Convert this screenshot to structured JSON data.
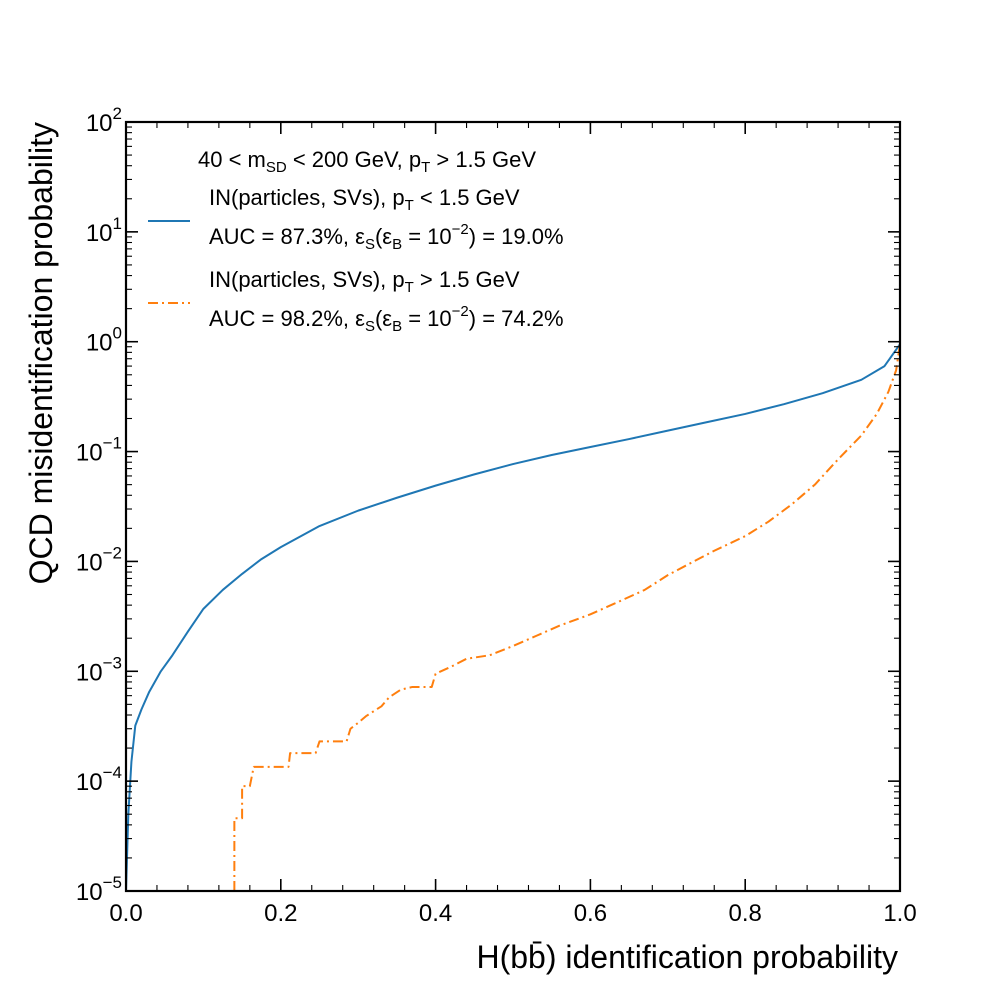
{
  "chart_data": {
    "type": "line",
    "xlabel": "H(bb̄) identification probability",
    "ylabel": "QCD misidentification probability",
    "xlim": [
      0.0,
      1.0
    ],
    "ylim": [
      1e-05,
      100
    ],
    "yscale": "log",
    "x_ticks": [
      "0.0",
      "0.2",
      "0.4",
      "0.6",
      "0.8",
      "1.0"
    ],
    "y_ticks": [
      {
        "base": "10",
        "exp": "−5"
      },
      {
        "base": "10",
        "exp": "−4"
      },
      {
        "base": "10",
        "exp": "−3"
      },
      {
        "base": "10",
        "exp": "−2"
      },
      {
        "base": "10",
        "exp": "−1"
      },
      {
        "base": "10",
        "exp": "0"
      },
      {
        "base": "10",
        "exp": "1"
      },
      {
        "base": "10",
        "exp": "2"
      }
    ],
    "legend": {
      "placement": "top-left",
      "title": {
        "a": "40 < m",
        "sub1": "SD",
        "b": " < 200 GeV, p",
        "sub2": "T",
        "c": " > 1.5 GeV"
      }
    },
    "series": [
      {
        "name": "IN(particles, SVs), p_T < 1.5 GeV",
        "label": {
          "a": "IN(particles, SVs), p",
          "sub": "T",
          "b": " < 1.5 GeV"
        },
        "metrics": {
          "a": "AUC = 87.3%, ε",
          "sub1": "S",
          "b": "(ε",
          "sub2": "B",
          "c": " = 10",
          "sup": "−2",
          "d": ") = 19.0%"
        },
        "color": "#1f77b4",
        "style": "solid",
        "points": [
          [
            0.0,
            1e-05
          ],
          [
            0.003,
            5e-05
          ],
          [
            0.007,
            0.00015
          ],
          [
            0.012,
            0.00032
          ],
          [
            0.02,
            0.00045
          ],
          [
            0.03,
            0.00065
          ],
          [
            0.045,
            0.001
          ],
          [
            0.06,
            0.0014
          ],
          [
            0.08,
            0.0023
          ],
          [
            0.1,
            0.0037
          ],
          [
            0.125,
            0.0055
          ],
          [
            0.15,
            0.0077
          ],
          [
            0.175,
            0.0105
          ],
          [
            0.2,
            0.0135
          ],
          [
            0.25,
            0.021
          ],
          [
            0.3,
            0.029
          ],
          [
            0.35,
            0.038
          ],
          [
            0.4,
            0.049
          ],
          [
            0.45,
            0.062
          ],
          [
            0.5,
            0.077
          ],
          [
            0.55,
            0.093
          ],
          [
            0.6,
            0.11
          ],
          [
            0.65,
            0.13
          ],
          [
            0.7,
            0.155
          ],
          [
            0.75,
            0.185
          ],
          [
            0.8,
            0.22
          ],
          [
            0.85,
            0.27
          ],
          [
            0.9,
            0.34
          ],
          [
            0.95,
            0.45
          ],
          [
            0.98,
            0.6
          ],
          [
            1.0,
            0.95
          ]
        ]
      },
      {
        "name": "IN(particles, SVs), p_T > 1.5 GeV",
        "label": {
          "a": "IN(particles, SVs), p",
          "sub": "T",
          "b": " > 1.5 GeV"
        },
        "metrics": {
          "a": "AUC = 98.2%, ε",
          "sub1": "S",
          "b": "(ε",
          "sub2": "B",
          "c": " = 10",
          "sup": "−2",
          "d": ") = 74.2%"
        },
        "color": "#ff7f0e",
        "style": "dashdot",
        "points": [
          [
            0.14,
            1e-05
          ],
          [
            0.14,
            4.6e-05
          ],
          [
            0.15,
            4.6e-05
          ],
          [
            0.15,
            9e-05
          ],
          [
            0.16,
            9e-05
          ],
          [
            0.165,
            0.000135
          ],
          [
            0.21,
            0.000135
          ],
          [
            0.212,
            0.00018
          ],
          [
            0.245,
            0.00018
          ],
          [
            0.25,
            0.00023
          ],
          [
            0.285,
            0.00023
          ],
          [
            0.29,
            0.0003
          ],
          [
            0.3,
            0.00034
          ],
          [
            0.31,
            0.00039
          ],
          [
            0.33,
            0.00048
          ],
          [
            0.34,
            0.00058
          ],
          [
            0.355,
            0.00068
          ],
          [
            0.37,
            0.00072
          ],
          [
            0.395,
            0.00072
          ],
          [
            0.4,
            0.00095
          ],
          [
            0.42,
            0.0011
          ],
          [
            0.44,
            0.0013
          ],
          [
            0.47,
            0.0014
          ],
          [
            0.5,
            0.0017
          ],
          [
            0.53,
            0.0021
          ],
          [
            0.56,
            0.0026
          ],
          [
            0.6,
            0.0033
          ],
          [
            0.63,
            0.0041
          ],
          [
            0.67,
            0.0055
          ],
          [
            0.7,
            0.0075
          ],
          [
            0.73,
            0.0097
          ],
          [
            0.76,
            0.0125
          ],
          [
            0.8,
            0.017
          ],
          [
            0.83,
            0.023
          ],
          [
            0.86,
            0.033
          ],
          [
            0.89,
            0.05
          ],
          [
            0.92,
            0.085
          ],
          [
            0.95,
            0.14
          ],
          [
            0.97,
            0.22
          ],
          [
            0.985,
            0.35
          ],
          [
            0.995,
            0.55
          ],
          [
            1.0,
            0.95
          ]
        ]
      }
    ]
  }
}
